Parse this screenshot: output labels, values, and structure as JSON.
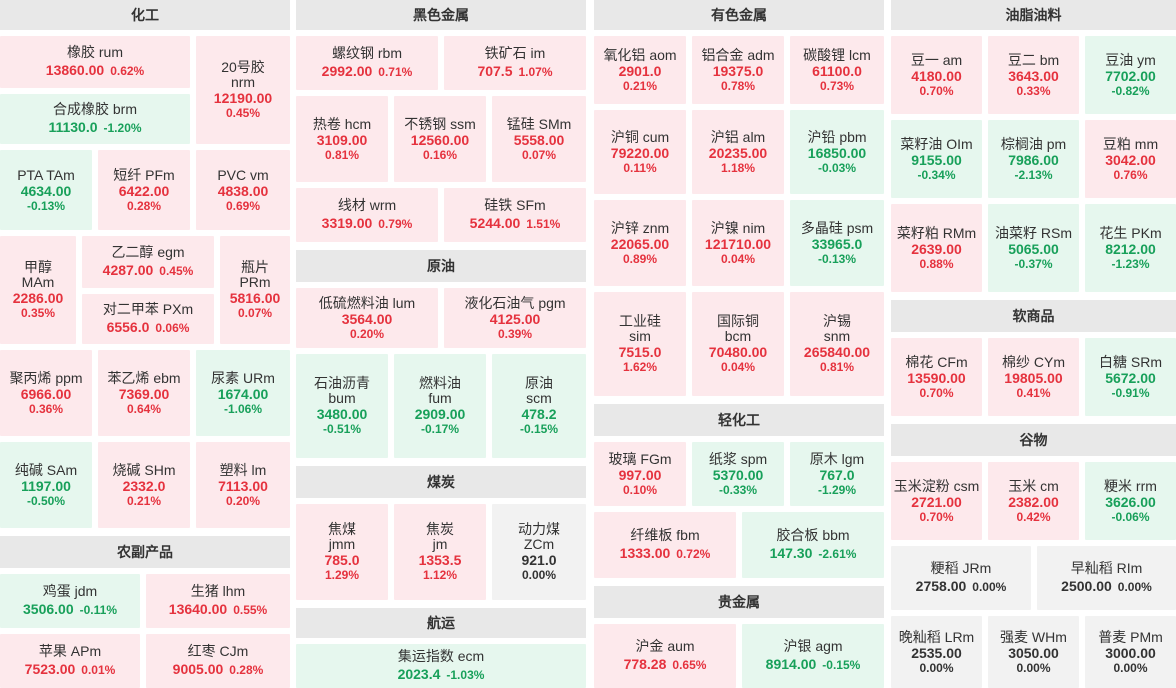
{
  "categories": {
    "chemical": "化工",
    "agri": "农副产品",
    "ferrous": "黑色金属",
    "crude": "原油",
    "coal": "煤炭",
    "shipping": "航运",
    "nonferrous": "有色金属",
    "light": "轻化工",
    "precious": "贵金属",
    "oils": "油脂油料",
    "soft": "软商品",
    "grains": "谷物"
  },
  "contracts": {
    "rum": {
      "name": "橡胶  rum",
      "price": "13860.00",
      "pct": "0.62%",
      "dir": "up"
    },
    "nrm": {
      "name": "20号胶",
      "code": "nrm",
      "price": "12190.00",
      "pct": "0.45%",
      "dir": "up"
    },
    "brm": {
      "name": "合成橡胶  brm",
      "price": "11130.0",
      "pct": "-1.20%",
      "dir": "down"
    },
    "TAm": {
      "name": "PTA  TAm",
      "price": "4634.00",
      "pct": "-0.13%",
      "dir": "down"
    },
    "PFm": {
      "name": "短纤  PFm",
      "price": "6422.00",
      "pct": "0.28%",
      "dir": "up"
    },
    "vm": {
      "name": "PVC  vm",
      "price": "4838.00",
      "pct": "0.69%",
      "dir": "up"
    },
    "MAm": {
      "name": "甲醇",
      "code": "MAm",
      "price": "2286.00",
      "pct": "0.35%",
      "dir": "up"
    },
    "egm": {
      "name": "乙二醇  egm",
      "price": "4287.00",
      "pct": "0.45%",
      "dir": "up"
    },
    "PRm": {
      "name": "瓶片",
      "code": "PRm",
      "price": "5816.00",
      "pct": "0.07%",
      "dir": "up"
    },
    "PXm": {
      "name": "对二甲苯  PXm",
      "price": "6556.0",
      "pct": "0.06%",
      "dir": "up"
    },
    "ppm": {
      "name": "聚丙烯  ppm",
      "price": "6966.00",
      "pct": "0.36%",
      "dir": "up"
    },
    "ebm": {
      "name": "苯乙烯  ebm",
      "price": "7369.00",
      "pct": "0.64%",
      "dir": "up"
    },
    "URm": {
      "name": "尿素  URm",
      "price": "1674.00",
      "pct": "-1.06%",
      "dir": "down"
    },
    "SAm": {
      "name": "纯碱  SAm",
      "price": "1197.00",
      "pct": "-0.50%",
      "dir": "down"
    },
    "SHm": {
      "name": "烧碱  SHm",
      "price": "2332.0",
      "pct": "0.21%",
      "dir": "up"
    },
    "lm": {
      "name": "塑料  lm",
      "price": "7113.00",
      "pct": "0.20%",
      "dir": "up"
    },
    "jdm": {
      "name": "鸡蛋  jdm",
      "price": "3506.00",
      "pct": "-0.11%",
      "dir": "down"
    },
    "lhm": {
      "name": "生猪  lhm",
      "price": "13640.00",
      "pct": "0.55%",
      "dir": "up"
    },
    "APm": {
      "name": "苹果  APm",
      "price": "7523.00",
      "pct": "0.01%",
      "dir": "up"
    },
    "CJm": {
      "name": "红枣  CJm",
      "price": "9005.00",
      "pct": "0.28%",
      "dir": "up"
    },
    "rbm": {
      "name": "螺纹钢  rbm",
      "price": "2992.00",
      "pct": "0.71%",
      "dir": "up"
    },
    "im": {
      "name": "铁矿石  im",
      "price": "707.5",
      "pct": "1.07%",
      "dir": "up"
    },
    "hcm": {
      "name": "热卷  hcm",
      "price": "3109.00",
      "pct": "0.81%",
      "dir": "up"
    },
    "ssm": {
      "name": "不锈钢  ssm",
      "price": "12560.00",
      "pct": "0.16%",
      "dir": "up"
    },
    "SMm": {
      "name": "锰硅  SMm",
      "price": "5558.00",
      "pct": "0.07%",
      "dir": "up"
    },
    "wrm": {
      "name": "线材  wrm",
      "price": "3319.00",
      "pct": "0.79%",
      "dir": "up"
    },
    "SFm": {
      "name": "硅铁  SFm",
      "price": "5244.00",
      "pct": "1.51%",
      "dir": "up"
    },
    "lum": {
      "name": "低硫燃料油  lum",
      "price": "3564.00",
      "pct": "0.20%",
      "dir": "up"
    },
    "pgm": {
      "name": "液化石油气  pgm",
      "price": "4125.00",
      "pct": "0.39%",
      "dir": "up"
    },
    "bum": {
      "name": "石油沥青",
      "code": "bum",
      "price": "3480.00",
      "pct": "-0.51%",
      "dir": "down"
    },
    "fum": {
      "name": "燃料油",
      "code": "fum",
      "price": "2909.00",
      "pct": "-0.17%",
      "dir": "down"
    },
    "scm": {
      "name": "原油",
      "code": "scm",
      "price": "478.2",
      "pct": "-0.15%",
      "dir": "down"
    },
    "jmm": {
      "name": "焦煤",
      "code": "jmm",
      "price": "785.0",
      "pct": "1.29%",
      "dir": "up"
    },
    "jm": {
      "name": "焦炭",
      "code": "jm",
      "price": "1353.5",
      "pct": "1.12%",
      "dir": "up"
    },
    "ZCm": {
      "name": "动力煤",
      "code": "ZCm",
      "price": "921.0",
      "pct": "0.00%",
      "dir": "flat"
    },
    "ecm": {
      "name": "集运指数  ecm",
      "price": "2023.4",
      "pct": "-1.03%",
      "dir": "down"
    },
    "aom": {
      "name": "氧化铝  aom",
      "price": "2901.0",
      "pct": "0.21%",
      "dir": "up"
    },
    "adm": {
      "name": "铝合金  adm",
      "price": "19375.0",
      "pct": "0.78%",
      "dir": "up"
    },
    "lcm": {
      "name": "碳酸锂  lcm",
      "price": "61100.0",
      "pct": "0.73%",
      "dir": "up"
    },
    "cum": {
      "name": "沪铜  cum",
      "price": "79220.00",
      "pct": "0.11%",
      "dir": "up"
    },
    "alm": {
      "name": "沪铝  alm",
      "price": "20235.00",
      "pct": "1.18%",
      "dir": "up"
    },
    "pbm": {
      "name": "沪铅  pbm",
      "price": "16850.00",
      "pct": "-0.03%",
      "dir": "down"
    },
    "znm": {
      "name": "沪锌  znm",
      "price": "22065.00",
      "pct": "0.89%",
      "dir": "up"
    },
    "nim": {
      "name": "沪镍  nim",
      "price": "121710.00",
      "pct": "0.04%",
      "dir": "up"
    },
    "psm": {
      "name": "多晶硅  psm",
      "price": "33965.0",
      "pct": "-0.13%",
      "dir": "down"
    },
    "sim": {
      "name": "工业硅",
      "code": "sim",
      "price": "7515.0",
      "pct": "1.62%",
      "dir": "up"
    },
    "bcm": {
      "name": "国际铜",
      "code": "bcm",
      "price": "70480.00",
      "pct": "0.04%",
      "dir": "up"
    },
    "snm": {
      "name": "沪锡",
      "code": "snm",
      "price": "265840.00",
      "pct": "0.81%",
      "dir": "up"
    },
    "FGm": {
      "name": "玻璃  FGm",
      "price": "997.00",
      "pct": "0.10%",
      "dir": "up"
    },
    "spm": {
      "name": "纸浆  spm",
      "price": "5370.00",
      "pct": "-0.33%",
      "dir": "down"
    },
    "lgm": {
      "name": "原木  lgm",
      "price": "767.0",
      "pct": "-1.29%",
      "dir": "down"
    },
    "fbm": {
      "name": "纤维板  fbm",
      "price": "1333.00",
      "pct": "0.72%",
      "dir": "up"
    },
    "bbm": {
      "name": "胶合板  bbm",
      "price": "147.30",
      "pct": "-2.61%",
      "dir": "down"
    },
    "aum": {
      "name": "沪金  aum",
      "price": "778.28",
      "pct": "0.65%",
      "dir": "up"
    },
    "agm": {
      "name": "沪银  agm",
      "price": "8914.00",
      "pct": "-0.15%",
      "dir": "down"
    },
    "am": {
      "name": "豆一  am",
      "price": "4180.00",
      "pct": "0.70%",
      "dir": "up"
    },
    "bm": {
      "name": "豆二  bm",
      "price": "3643.00",
      "pct": "0.33%",
      "dir": "up"
    },
    "ym": {
      "name": "豆油  ym",
      "price": "7702.00",
      "pct": "-0.82%",
      "dir": "down"
    },
    "OIm": {
      "name": "菜籽油  OIm",
      "price": "9155.00",
      "pct": "-0.34%",
      "dir": "down"
    },
    "pm": {
      "name": "棕榈油  pm",
      "price": "7986.00",
      "pct": "-2.13%",
      "dir": "down"
    },
    "mm": {
      "name": "豆粕  mm",
      "price": "3042.00",
      "pct": "0.76%",
      "dir": "up"
    },
    "RMm": {
      "name": "菜籽粕  RMm",
      "price": "2639.00",
      "pct": "0.88%",
      "dir": "up"
    },
    "RSm": {
      "name": "油菜籽  RSm",
      "price": "5065.00",
      "pct": "-0.37%",
      "dir": "down"
    },
    "PKm": {
      "name": "花生  PKm",
      "price": "8212.00",
      "pct": "-1.23%",
      "dir": "down"
    },
    "CFm": {
      "name": "棉花  CFm",
      "price": "13590.00",
      "pct": "0.70%",
      "dir": "up"
    },
    "CYm": {
      "name": "棉纱  CYm",
      "price": "19805.00",
      "pct": "0.41%",
      "dir": "up"
    },
    "SRm": {
      "name": "白糖  SRm",
      "price": "5672.00",
      "pct": "-0.91%",
      "dir": "down"
    },
    "csm": {
      "name": "玉米淀粉  csm",
      "price": "2721.00",
      "pct": "0.70%",
      "dir": "up"
    },
    "cm": {
      "name": "玉米  cm",
      "price": "2382.00",
      "pct": "0.42%",
      "dir": "up"
    },
    "rrm": {
      "name": "粳米  rrm",
      "price": "3626.00",
      "pct": "-0.06%",
      "dir": "down"
    },
    "JRm": {
      "name": "粳稻  JRm",
      "price": "2758.00",
      "pct": "0.00%",
      "dir": "flat"
    },
    "RIm": {
      "name": "早籼稻  RIm",
      "price": "2500.00",
      "pct": "0.00%",
      "dir": "flat"
    },
    "LRm": {
      "name": "晚籼稻  LRm",
      "price": "2535.00",
      "pct": "0.00%",
      "dir": "flat"
    },
    "WHm": {
      "name": "强麦  WHm",
      "price": "3050.00",
      "pct": "0.00%",
      "dir": "flat"
    },
    "PMm": {
      "name": "普麦  PMm",
      "price": "3000.00",
      "pct": "0.00%",
      "dir": "flat"
    }
  }
}
